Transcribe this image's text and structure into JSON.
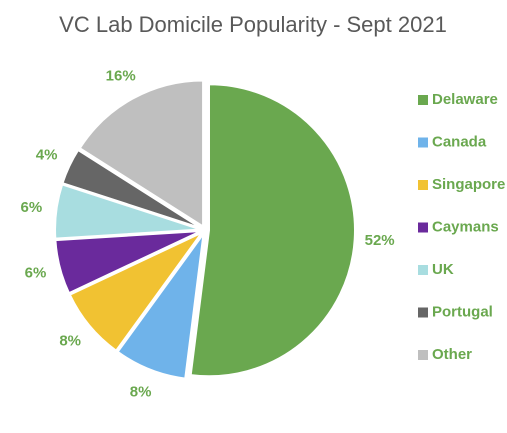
{
  "chart_data": {
    "type": "pie",
    "title": "VC Lab Domicile Popularity - Sept 2021",
    "categories": [
      "Delaware",
      "Canada",
      "Singapore",
      "Caymans",
      "UK",
      "Portugal",
      "Other"
    ],
    "values": [
      52,
      8,
      8,
      6,
      6,
      4,
      16
    ],
    "value_labels": [
      "52%",
      "8%",
      "8%",
      "6%",
      "6%",
      "4%",
      "16%"
    ],
    "colors": [
      "#6aa84f",
      "#6fb3ea",
      "#f1c232",
      "#6a2a9c",
      "#a8dde0",
      "#666666",
      "#bfbfbf"
    ],
    "legend": "right"
  }
}
